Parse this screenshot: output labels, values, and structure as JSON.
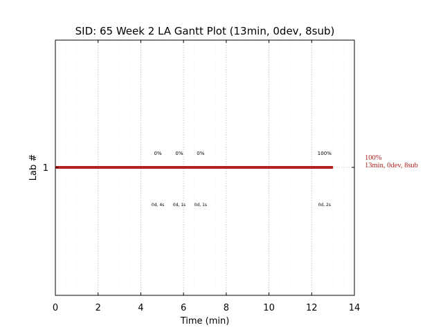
{
  "chart_data": {
    "type": "gantt",
    "title": "SID: 65 Week 2 LA Gantt Plot (13min, 0dev, 8sub)",
    "xlabel": "Time (min)",
    "ylabel": "Lab #",
    "xlim": [
      0,
      14
    ],
    "xticks": [
      "0",
      "2",
      "4",
      "6",
      "8",
      "10",
      "12",
      "14"
    ],
    "yticks": [
      "1"
    ],
    "grid": true,
    "bar": {
      "lab": 1,
      "start": 0,
      "end": 13,
      "color": "#b22222"
    },
    "submissions": [
      {
        "time": 4.8,
        "percent": "0%",
        "detail": "0d, 4s"
      },
      {
        "time": 5.8,
        "percent": "0%",
        "detail": "0d, 1s"
      },
      {
        "time": 6.8,
        "percent": "0%",
        "detail": "0d, 1s"
      },
      {
        "time": 12.6,
        "percent": "100%",
        "detail": "0d, 2s"
      }
    ],
    "summary": {
      "line1": "100%",
      "line2": "13min, 0dev, 8sub",
      "color": "#b22222"
    }
  }
}
